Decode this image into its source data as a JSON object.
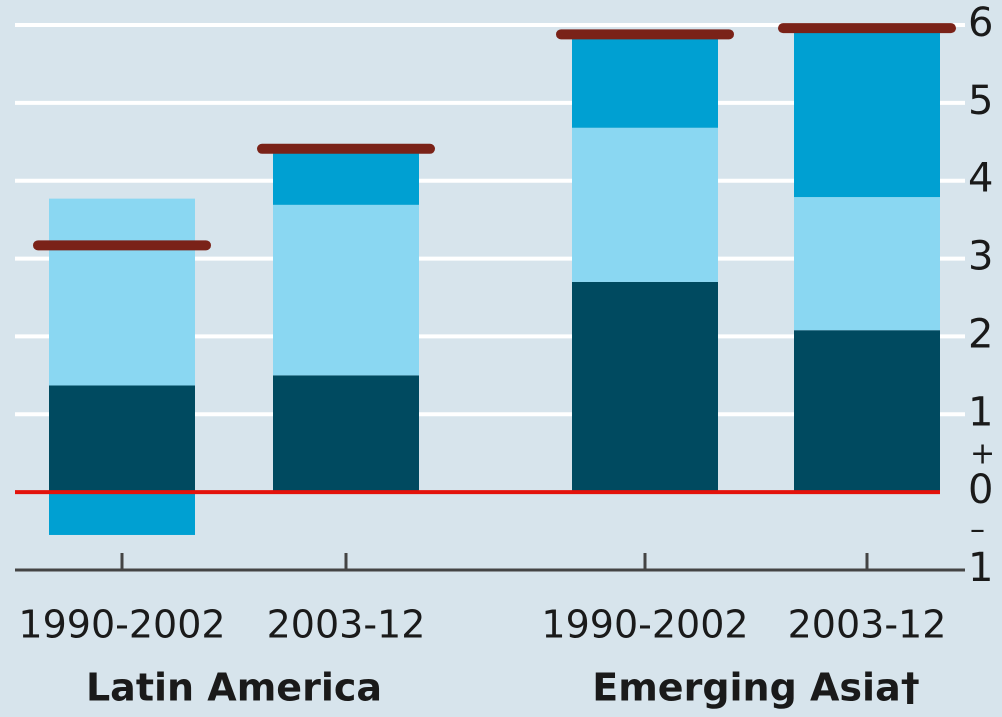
{
  "chart_data": {
    "type": "stacked-bar",
    "categories": [
      "1990-2002",
      "2003-12",
      "1990-2002",
      "2003-12"
    ],
    "groups": [
      {
        "label": "Latin America",
        "members": [
          0,
          1
        ]
      },
      {
        "label": "Emerging Asia†",
        "members": [
          2,
          3
        ]
      }
    ],
    "series": [
      {
        "color": "#004a60",
        "values": [
          1.37,
          1.5,
          2.7,
          2.08
        ]
      },
      {
        "color": "#8ad7f2",
        "values": [
          2.4,
          2.19,
          1.98,
          1.71
        ]
      },
      {
        "color": "#00a0d2",
        "values": [
          -0.55,
          0.69,
          1.18,
          2.13
        ]
      }
    ],
    "markers": {
      "color": "#7a2218",
      "values": [
        3.17,
        4.41,
        5.88,
        5.96
      ]
    },
    "ylim": [
      -1,
      6
    ],
    "yticks": [
      {
        "value": -1,
        "label": "1"
      },
      0,
      1,
      2,
      3,
      4,
      5,
      6
    ],
    "sign_labels": [
      "+",
      "–"
    ],
    "grid": true,
    "zero_line_color": "#e3120b"
  }
}
